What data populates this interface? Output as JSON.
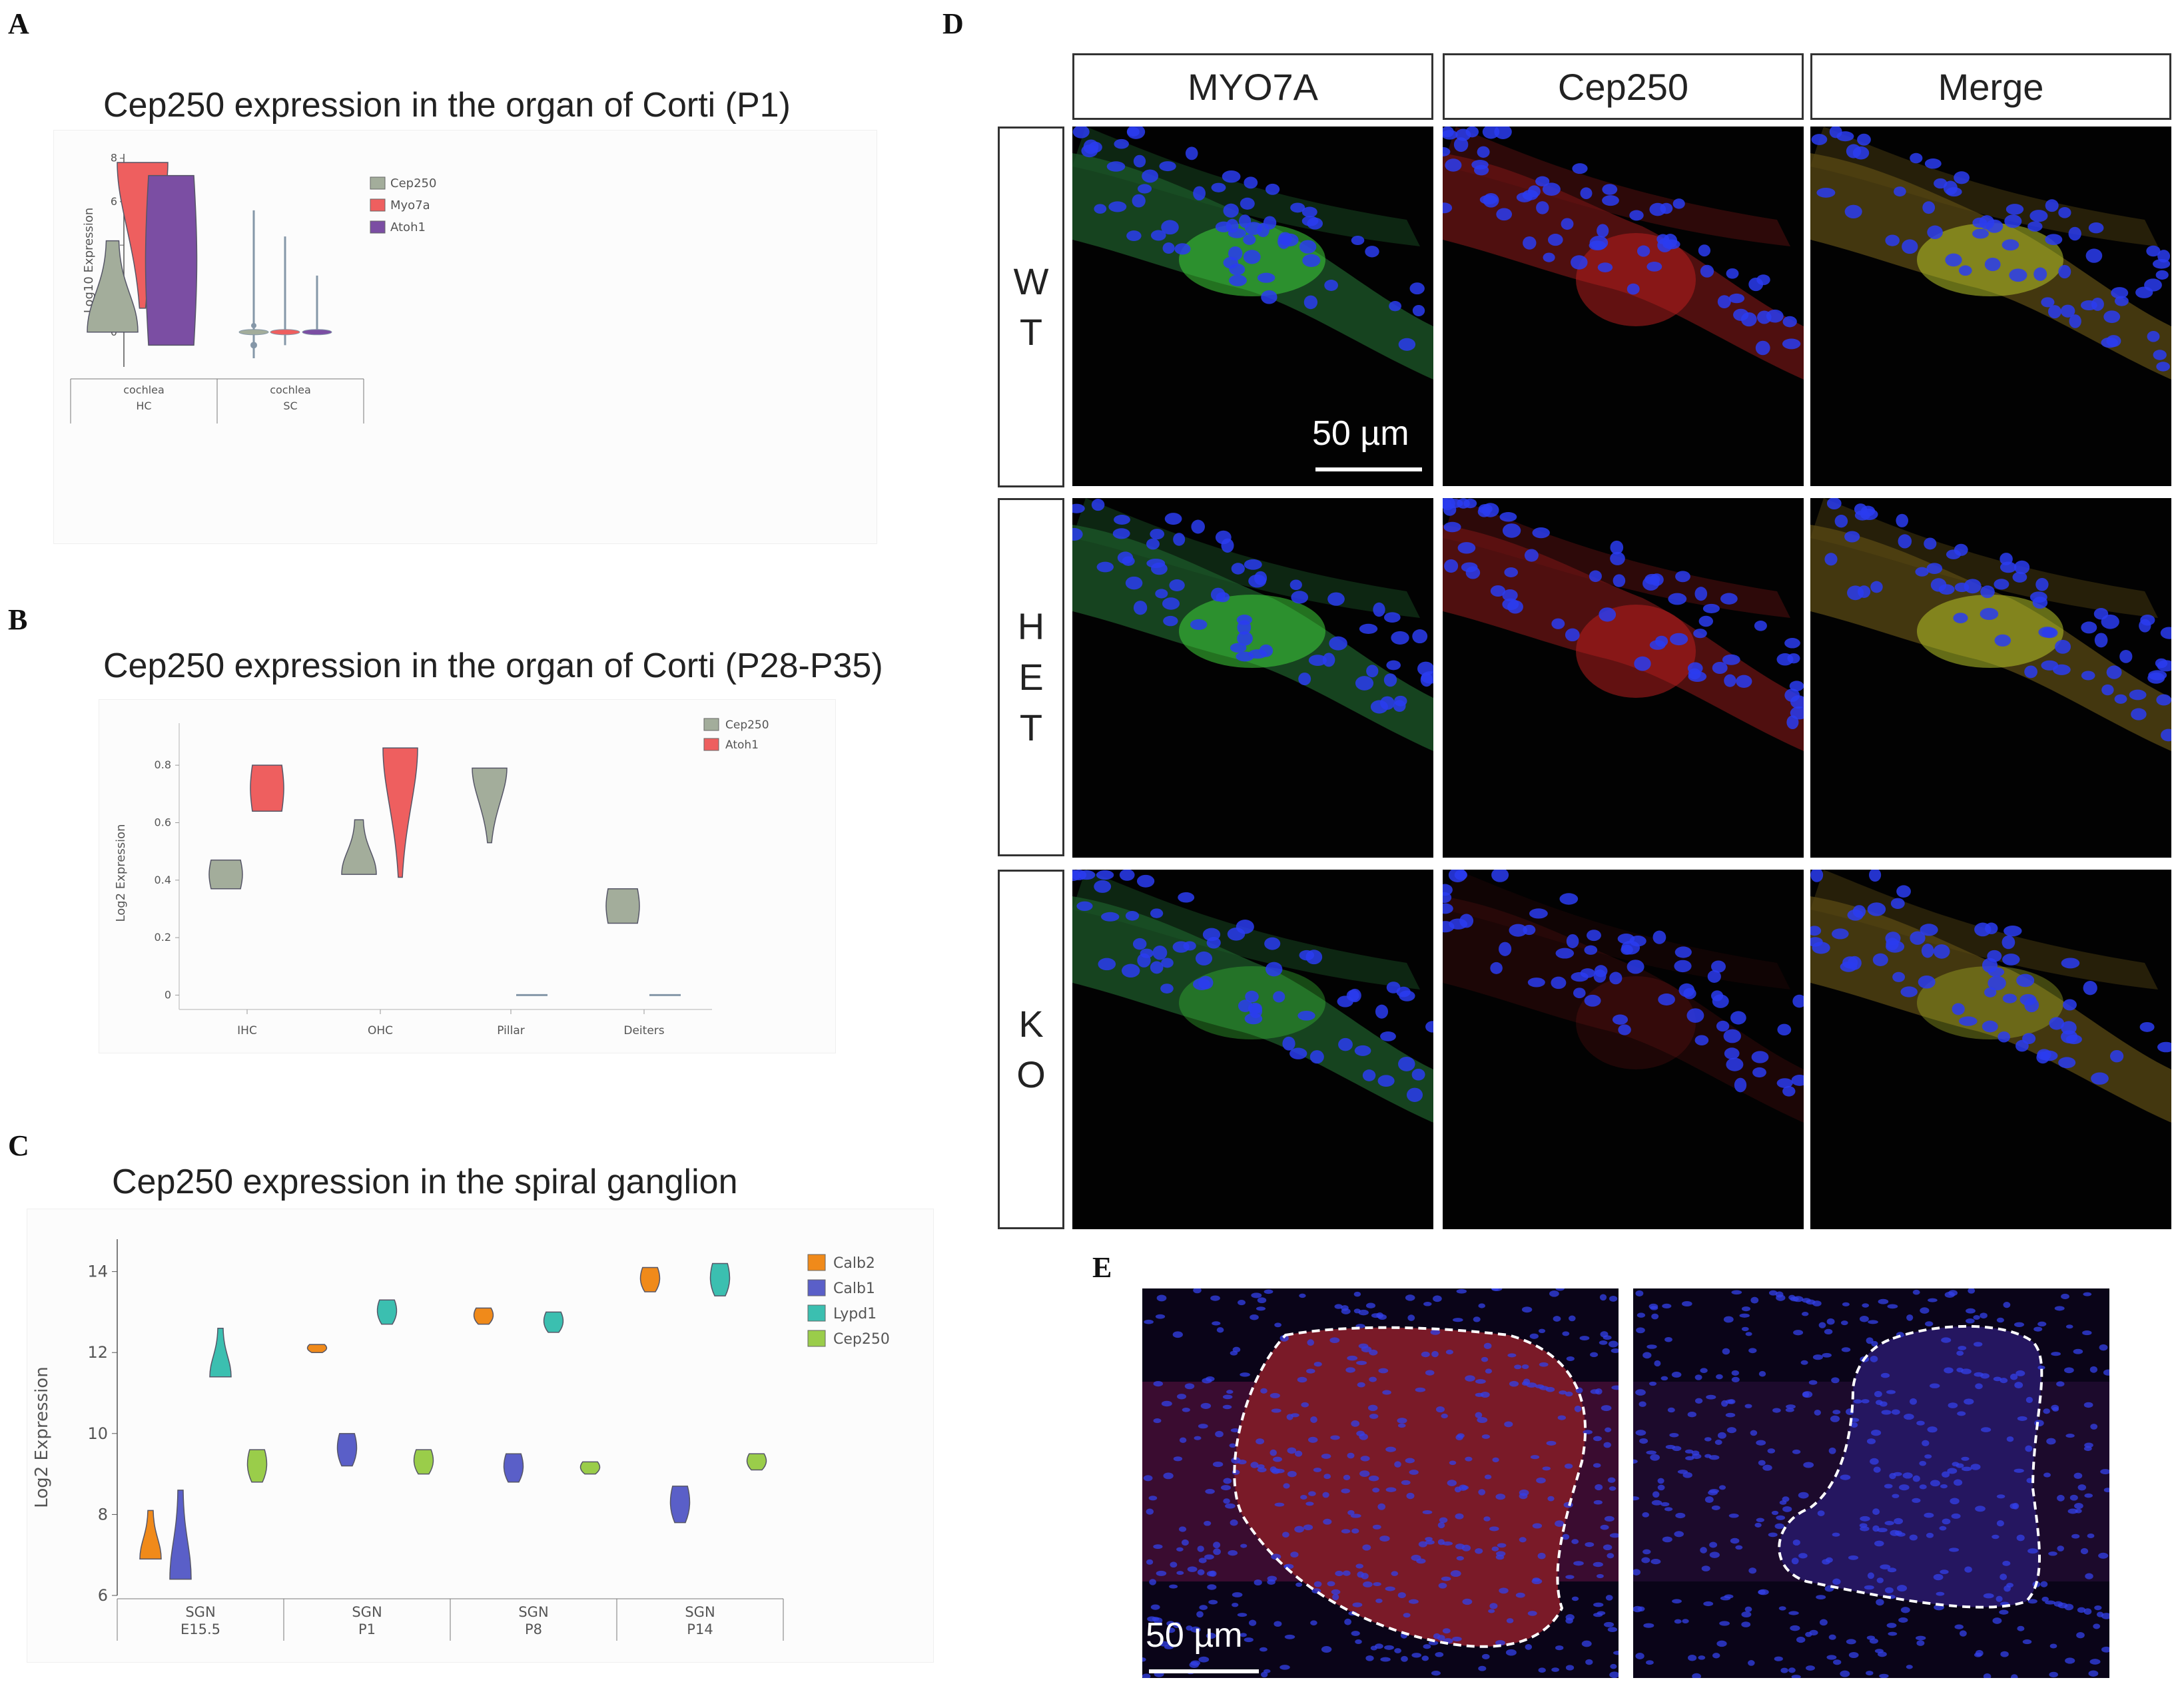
{
  "panels": {
    "A": {
      "letter": "A",
      "chart_data": {
        "type": "violin",
        "title": "Cep250 expression in the organ of Corti (P1)",
        "ylabel": "Log10 Expression",
        "ylim": [
          -1.6,
          8.2
        ],
        "yticks": [
          0,
          2,
          4,
          6,
          8
        ],
        "groups": [
          {
            "line1": "cochlea",
            "line2": "HC"
          },
          {
            "line1": "cochlea",
            "line2": "SC"
          }
        ],
        "legend": [
          "Cep250",
          "Myo7a",
          "Atoh1"
        ],
        "colors": [
          "#a3ad9b",
          "#ee5f5f",
          "#7b4ea3"
        ],
        "series": [
          {
            "name": "Cep250",
            "group": 0,
            "min": 0,
            "max": 4.2
          },
          {
            "name": "Myo7a",
            "group": 0,
            "min": 1.1,
            "max": 7.8
          },
          {
            "name": "Atoh1",
            "group": 0,
            "min": -0.6,
            "max": 7.2
          },
          {
            "name": "Cep250",
            "group": 1,
            "min": -1.2,
            "max": 5.6
          },
          {
            "name": "Myo7a",
            "group": 1,
            "min": -0.6,
            "max": 4.4
          },
          {
            "name": "Atoh1",
            "group": 1,
            "min": 0,
            "max": 2.6
          }
        ]
      }
    },
    "B": {
      "letter": "B",
      "chart_data": {
        "type": "violin",
        "title": "Cep250 expression in the organ of Corti (P28-P35)",
        "ylabel": "Log2 Expression",
        "ylim": [
          -0.05,
          0.9
        ],
        "yticks": [
          0,
          0.2,
          0.4,
          0.6,
          0.8
        ],
        "categories": [
          "IHC",
          "OHC",
          "Pillar",
          "Deiters"
        ],
        "legend": [
          "Cep250",
          "Atoh1"
        ],
        "colors": [
          "#a3ad9b",
          "#ee5f5f"
        ],
        "series": [
          {
            "name": "Cep250",
            "values": [
              [
                0.37,
                0.47
              ],
              [
                0.42,
                0.61
              ],
              [
                0.53,
                0.79
              ],
              [
                0.25,
                0.37
              ]
            ]
          },
          {
            "name": "Atoh1",
            "values": [
              [
                0.64,
                0.8
              ],
              [
                0.41,
                0.86
              ],
              [
                0,
                0
              ],
              [
                0,
                0
              ]
            ]
          }
        ]
      }
    },
    "C": {
      "letter": "C",
      "chart_data": {
        "type": "violin",
        "title": "Cep250 expression in the spiral ganglion",
        "ylabel": "Log2 Expression",
        "ylim": [
          6,
          14.8
        ],
        "yticks": [
          6,
          8,
          10,
          12,
          14
        ],
        "groups": [
          {
            "line1": "SGN",
            "line2": "E15.5"
          },
          {
            "line1": "SGN",
            "line2": "P1"
          },
          {
            "line1": "SGN",
            "line2": "P8"
          },
          {
            "line1": "SGN",
            "line2": "P14"
          }
        ],
        "legend": [
          "Calb2",
          "Calb1",
          "Lypd1",
          "Cep250"
        ],
        "colors": [
          "#f08a1a",
          "#5a5fc8",
          "#3bbfb0",
          "#9acd4a"
        ],
        "series": [
          {
            "name": "Calb2",
            "values": [
              [
                6.9,
                8.1
              ],
              [
                12,
                12.2
              ],
              [
                12.7,
                13.1
              ],
              [
                13.5,
                14.1
              ]
            ]
          },
          {
            "name": "Calb1",
            "values": [
              [
                6.4,
                8.6
              ],
              [
                9.2,
                10
              ],
              [
                8.8,
                9.5
              ],
              [
                7.8,
                8.7
              ]
            ]
          },
          {
            "name": "Lypd1",
            "values": [
              [
                11.4,
                12.6
              ],
              [
                12.7,
                13.3
              ],
              [
                12.5,
                13
              ],
              [
                13.4,
                14.2
              ]
            ]
          },
          {
            "name": "Cep250",
            "values": [
              [
                8.8,
                9.6
              ],
              [
                9,
                9.6
              ],
              [
                9,
                9.3
              ],
              [
                9.1,
                9.5
              ]
            ]
          }
        ]
      }
    },
    "D": {
      "letter": "D",
      "columns": [
        "MYO7A",
        "Cep250",
        "Merge"
      ],
      "rows": [
        {
          "chars": [
            "W",
            "T"
          ]
        },
        {
          "chars": [
            "H",
            "E",
            "T"
          ]
        },
        {
          "chars": [
            "K",
            "O"
          ]
        }
      ],
      "scale_bar": "50 µm"
    },
    "E": {
      "letter": "E",
      "scale_bar": "50 µm"
    }
  }
}
